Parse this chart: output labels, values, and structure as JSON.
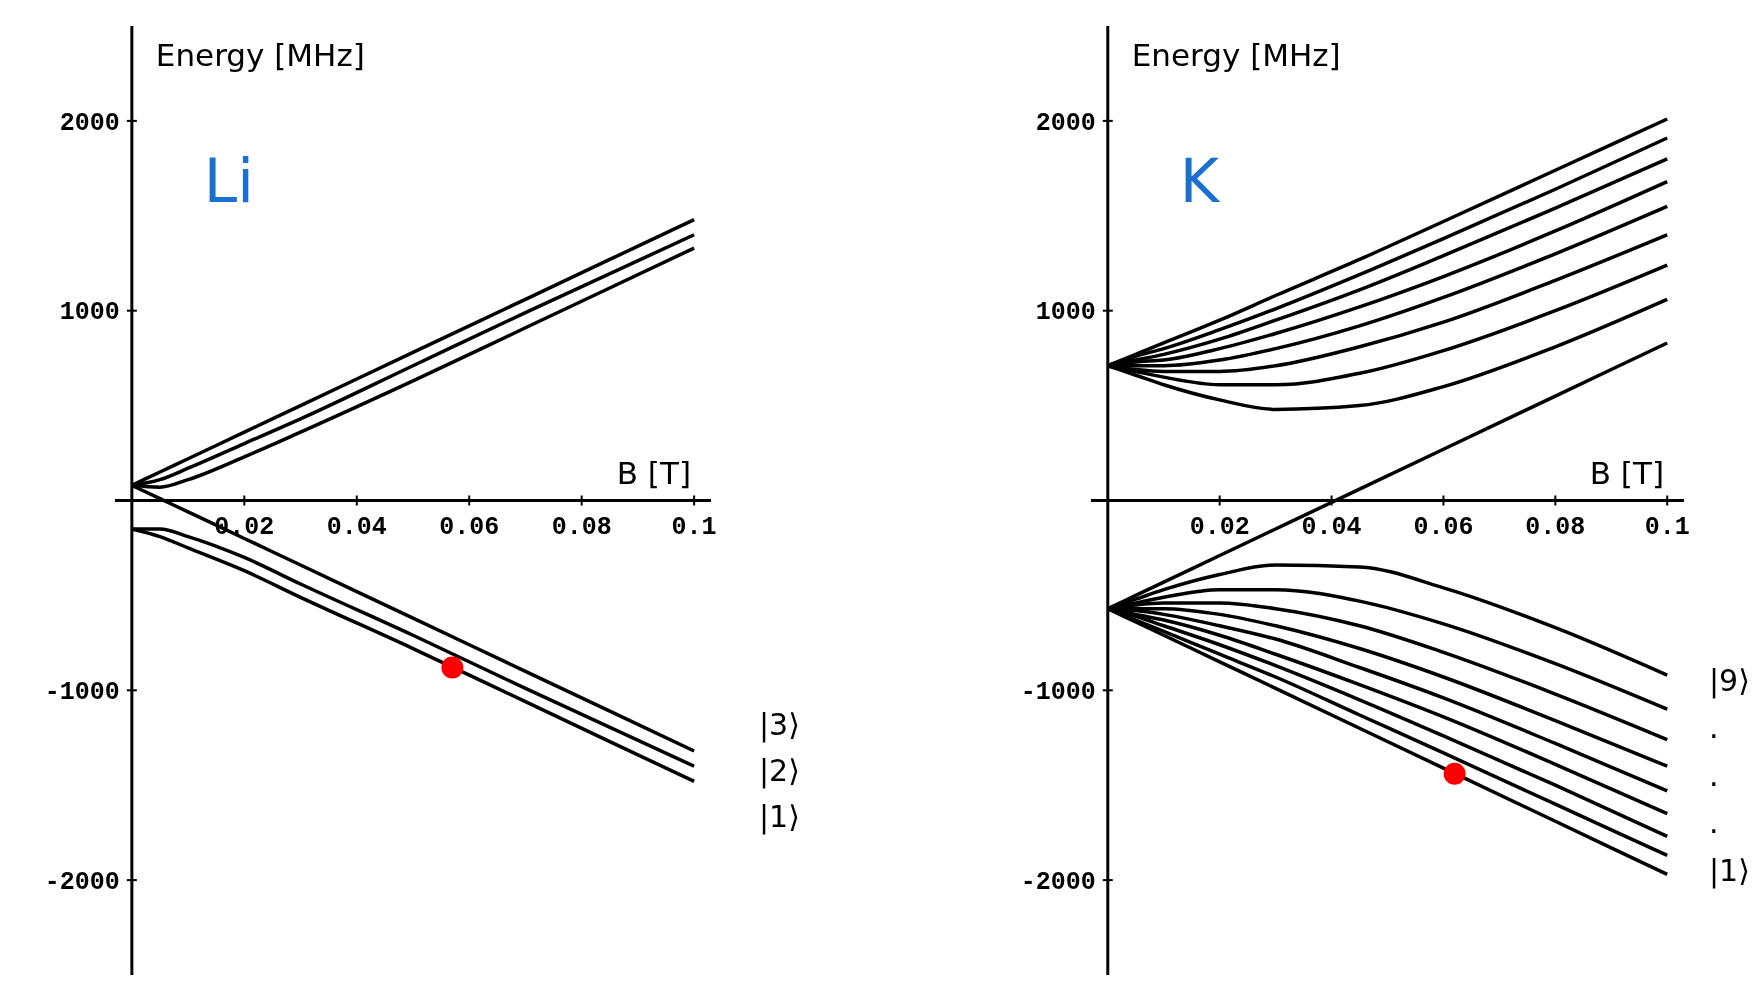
{
  "chart_data": [
    {
      "type": "line",
      "xlabel": "B [T]",
      "ylabel": "Energy [MHz]",
      "xlim": [
        -0.003,
        0.103
      ],
      "ylim": [
        -2500,
        2500
      ],
      "xticks": [
        0.02,
        0.04,
        0.06,
        0.08,
        0.1
      ],
      "yticks": [
        -2000,
        -1000,
        1000,
        2000
      ],
      "x": [
        0,
        0.005,
        0.01,
        0.02,
        0.03,
        0.05,
        0.07,
        0.1
      ],
      "annotations": [
        "Li",
        "|3⟩",
        "|2⟩",
        "|1⟩"
      ],
      "series": [
        {
          "color": "#000000",
          "values": [
            80,
            150,
            220,
            360,
            500,
            780,
            1060,
            1480
          ]
        },
        {
          "color": "#000000",
          "values": [
            80,
            110,
            170,
            300,
            430,
            710,
            990,
            1400
          ]
        },
        {
          "color": "#000000",
          "values": [
            80,
            70,
            110,
            230,
            360,
            630,
            910,
            1330
          ]
        },
        {
          "color": "#000000",
          "values": [
            80,
            10,
            -60,
            -200,
            -340,
            -620,
            -900,
            -1320
          ]
        },
        {
          "color": "#000000",
          "values": [
            -150,
            -150,
            -190,
            -300,
            -440,
            -710,
            -990,
            -1400
          ]
        },
        {
          "color": "#000000",
          "values": [
            -150,
            -190,
            -250,
            -370,
            -510,
            -780,
            -1060,
            -1480
          ]
        },
        {
          "type": "scatter",
          "marker": "circle",
          "color": "#ff0000",
          "x": [
            0.057
          ],
          "values": [
            -880
          ]
        }
      ]
    },
    {
      "type": "line",
      "xlabel": "B [T]",
      "ylabel": "Energy [MHz]",
      "xlim": [
        -0.003,
        0.103
      ],
      "ylim": [
        -2500,
        2500
      ],
      "xticks": [
        0.02,
        0.04,
        0.06,
        0.08,
        0.1
      ],
      "yticks": [
        -2000,
        -1000,
        1000,
        2000
      ],
      "x": [
        0,
        0.005,
        0.01,
        0.02,
        0.03,
        0.045,
        0.06,
        0.08,
        0.1
      ],
      "annotations": [
        "K",
        "|9⟩",
        ".",
        ".",
        ".",
        "|1⟩"
      ],
      "series": [
        {
          "color": "#000000",
          "values": [
            710,
            770,
            830,
            950,
            1080,
            1270,
            1470,
            1740,
            2010
          ]
        },
        {
          "color": "#000000",
          "values": [
            710,
            760,
            800,
            900,
            1010,
            1190,
            1380,
            1640,
            1910
          ]
        },
        {
          "color": "#000000",
          "values": [
            710,
            740,
            770,
            850,
            950,
            1110,
            1290,
            1540,
            1800
          ]
        },
        {
          "color": "#000000",
          "values": [
            710,
            730,
            740,
            800,
            880,
            1020,
            1180,
            1420,
            1680
          ]
        },
        {
          "color": "#000000",
          "values": [
            710,
            710,
            710,
            740,
            800,
            920,
            1070,
            1300,
            1550
          ]
        },
        {
          "color": "#000000",
          "values": [
            710,
            690,
            680,
            680,
            710,
            810,
            940,
            1160,
            1400
          ]
        },
        {
          "color": "#000000",
          "values": [
            710,
            680,
            650,
            610,
            610,
            670,
            790,
            1000,
            1240
          ]
        },
        {
          "color": "#000000",
          "values": [
            710,
            660,
            610,
            530,
            480,
            500,
            600,
            810,
            1060
          ]
        },
        {
          "color": "#000000",
          "values": [
            -570,
            -500,
            -430,
            -290,
            -150,
            60,
            270,
            550,
            830
          ]
        },
        {
          "color": "#000000",
          "values": [
            -570,
            -520,
            -470,
            -390,
            -340,
            -350,
            -460,
            -670,
            -920
          ]
        },
        {
          "color": "#000000",
          "values": [
            -570,
            -540,
            -510,
            -470,
            -470,
            -530,
            -650,
            -860,
            -1100
          ]
        },
        {
          "color": "#000000",
          "values": [
            -570,
            -550,
            -540,
            -540,
            -570,
            -660,
            -800,
            -1020,
            -1260
          ]
        },
        {
          "color": "#000000",
          "values": [
            -570,
            -570,
            -570,
            -600,
            -660,
            -780,
            -930,
            -1160,
            -1400
          ]
        },
        {
          "color": "#000000",
          "values": [
            -570,
            -580,
            -600,
            -660,
            -730,
            -880,
            -1040,
            -1280,
            -1530
          ]
        },
        {
          "color": "#000000",
          "values": [
            -570,
            -600,
            -630,
            -710,
            -810,
            -970,
            -1140,
            -1390,
            -1650
          ]
        },
        {
          "color": "#000000",
          "values": [
            -570,
            -610,
            -660,
            -760,
            -870,
            -1050,
            -1240,
            -1500,
            -1770
          ]
        },
        {
          "color": "#000000",
          "values": [
            -570,
            -630,
            -690,
            -810,
            -930,
            -1130,
            -1330,
            -1600,
            -1870
          ]
        },
        {
          "color": "#000000",
          "values": [
            -570,
            -640,
            -710,
            -850,
            -990,
            -1200,
            -1410,
            -1690,
            -1970
          ]
        },
        {
          "type": "scatter",
          "marker": "circle",
          "color": "#ff0000",
          "x": [
            0.062
          ],
          "values": [
            -1440
          ]
        }
      ]
    }
  ]
}
